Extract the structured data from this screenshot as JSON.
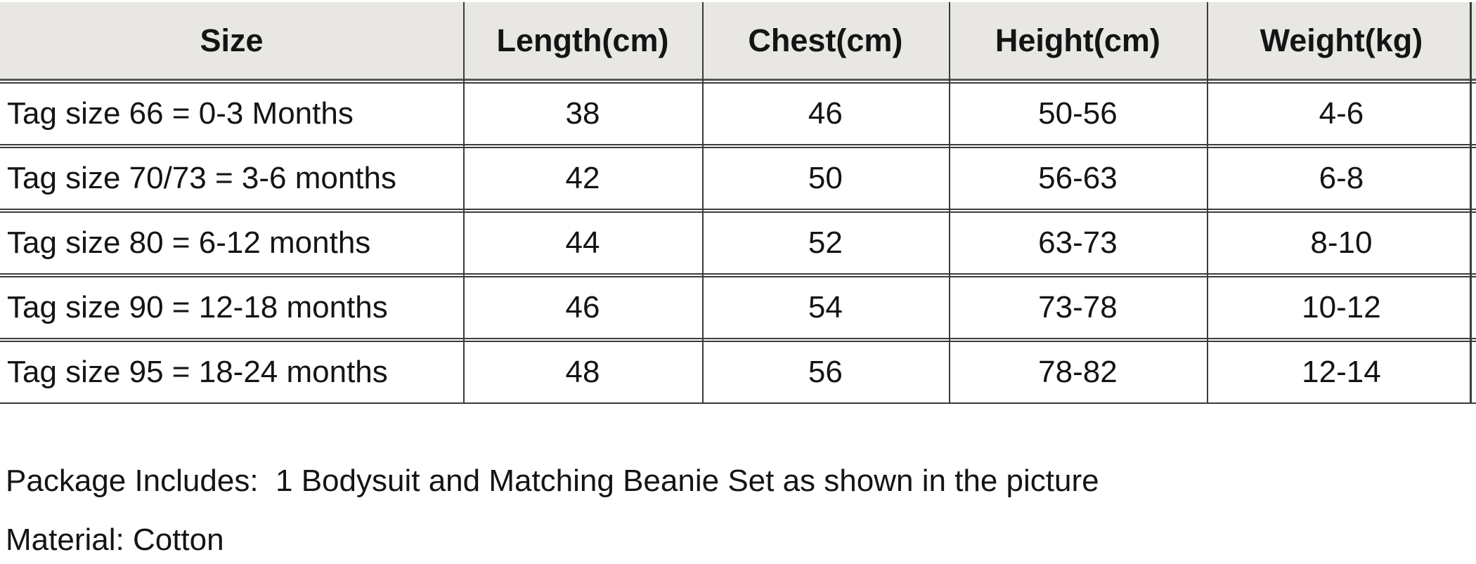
{
  "table": {
    "columns": [
      "Size",
      "Length(cm)",
      "Chest(cm)",
      "Height(cm)",
      "Weight(kg)"
    ],
    "rows": [
      [
        "Tag size 66 = 0-3 Months",
        "38",
        "46",
        "50-56",
        "4-6"
      ],
      [
        "Tag size 70/73 = 3-6 months",
        "42",
        "50",
        "56-63",
        "6-8"
      ],
      [
        "Tag size 80 = 6-12 months",
        "44",
        "52",
        "63-73",
        "8-10"
      ],
      [
        "Tag size 90 = 12-18 months",
        "46",
        "54",
        "73-78",
        "10-12"
      ],
      [
        "Tag size 95 = 18-24 months",
        "48",
        "56",
        "78-82",
        "12-14"
      ]
    ]
  },
  "notes": {
    "package_includes": "Package Includes:  1 Bodysuit and Matching Beanie Set as shown in the picture",
    "material": "Material: Cotton"
  },
  "colors": {
    "header_bg": "#e8e7e4",
    "grid_line": "#3b3b3b",
    "header_rule": "#565656",
    "text": "#141414",
    "background": "#ffffff"
  }
}
